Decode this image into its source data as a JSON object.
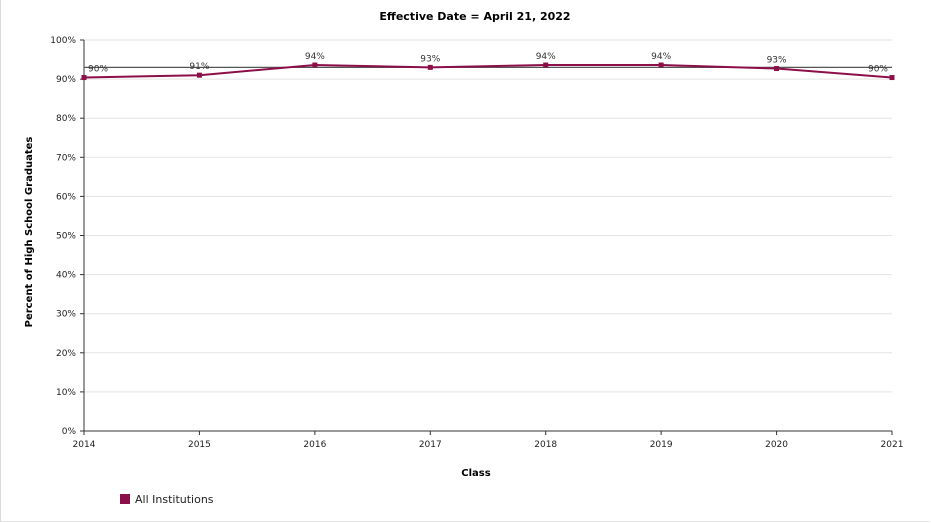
{
  "chart_data": {
    "type": "line",
    "title": "Effective Date = April 21, 2022",
    "xlabel": "Class",
    "ylabel": "Percent of High School Graduates",
    "categories": [
      "2014",
      "2015",
      "2016",
      "2017",
      "2018",
      "2019",
      "2020",
      "2021"
    ],
    "series": [
      {
        "name": "All Institutions",
        "values": [
          90.4,
          91.0,
          93.6,
          93.0,
          93.6,
          93.6,
          92.7,
          90.4
        ],
        "labels": [
          "90%",
          "91%",
          "94%",
          "93%",
          "94%",
          "94%",
          "93%",
          "90%"
        ],
        "color": "#8c0f4a"
      }
    ],
    "reference_line": {
      "value": 93.0,
      "color": "#555555"
    },
    "ylim": [
      0,
      100
    ],
    "yticks": [
      0,
      10,
      20,
      30,
      40,
      50,
      60,
      70,
      80,
      90,
      100
    ],
    "ytick_labels": [
      "0%",
      "10%",
      "20%",
      "30%",
      "40%",
      "50%",
      "60%",
      "70%",
      "80%",
      "90%",
      "100%"
    ],
    "grid": true,
    "legend_position": "bottom-left"
  }
}
